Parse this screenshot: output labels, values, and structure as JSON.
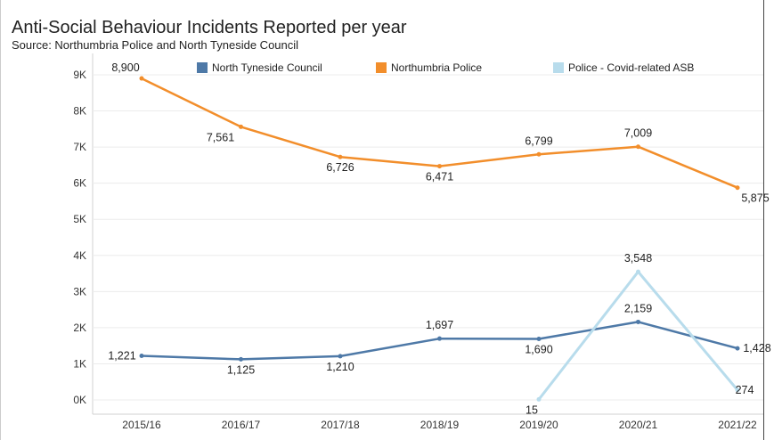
{
  "chart_data": {
    "type": "line",
    "title": "Anti-Social Behaviour Incidents Reported per year",
    "subtitle": "Source: Northumbria Police and North Tyneside Council",
    "xlabel": "",
    "ylabel": "",
    "categories": [
      "2015/16",
      "2016/17",
      "2017/18",
      "2018/19",
      "2019/20",
      "2020/21",
      "2021/22"
    ],
    "ylim": [
      0,
      9000
    ],
    "yticks": [
      0,
      1000,
      2000,
      3000,
      4000,
      5000,
      6000,
      7000,
      8000,
      9000
    ],
    "ytick_labels": [
      "0K",
      "1K",
      "2K",
      "3K",
      "4K",
      "5K",
      "6K",
      "7K",
      "8K",
      "9K"
    ],
    "grid": "horizontal",
    "legend_position": "top",
    "series": [
      {
        "name": "North Tyneside Council",
        "color": "#4e79a7",
        "values": [
          1221,
          1125,
          1210,
          1697,
          1690,
          2159,
          1428
        ],
        "labels": [
          "1,221",
          "1,125",
          "1,210",
          "1,697",
          "1,690",
          "2,159",
          "1,428"
        ]
      },
      {
        "name": "Northumbria Police",
        "color": "#f28e2b",
        "values": [
          8900,
          7561,
          6726,
          6471,
          6799,
          7009,
          5875
        ],
        "labels": [
          "8,900",
          "7,561",
          "6,726",
          "6,471",
          "6,799",
          "7,009",
          "5,875"
        ]
      },
      {
        "name": "Police - Covid-related ASB",
        "color": "#b8dcec",
        "values": [
          null,
          null,
          null,
          null,
          15,
          3548,
          274
        ],
        "labels": [
          "",
          "",
          "",
          "",
          "15",
          "3,548",
          "274"
        ]
      }
    ]
  }
}
